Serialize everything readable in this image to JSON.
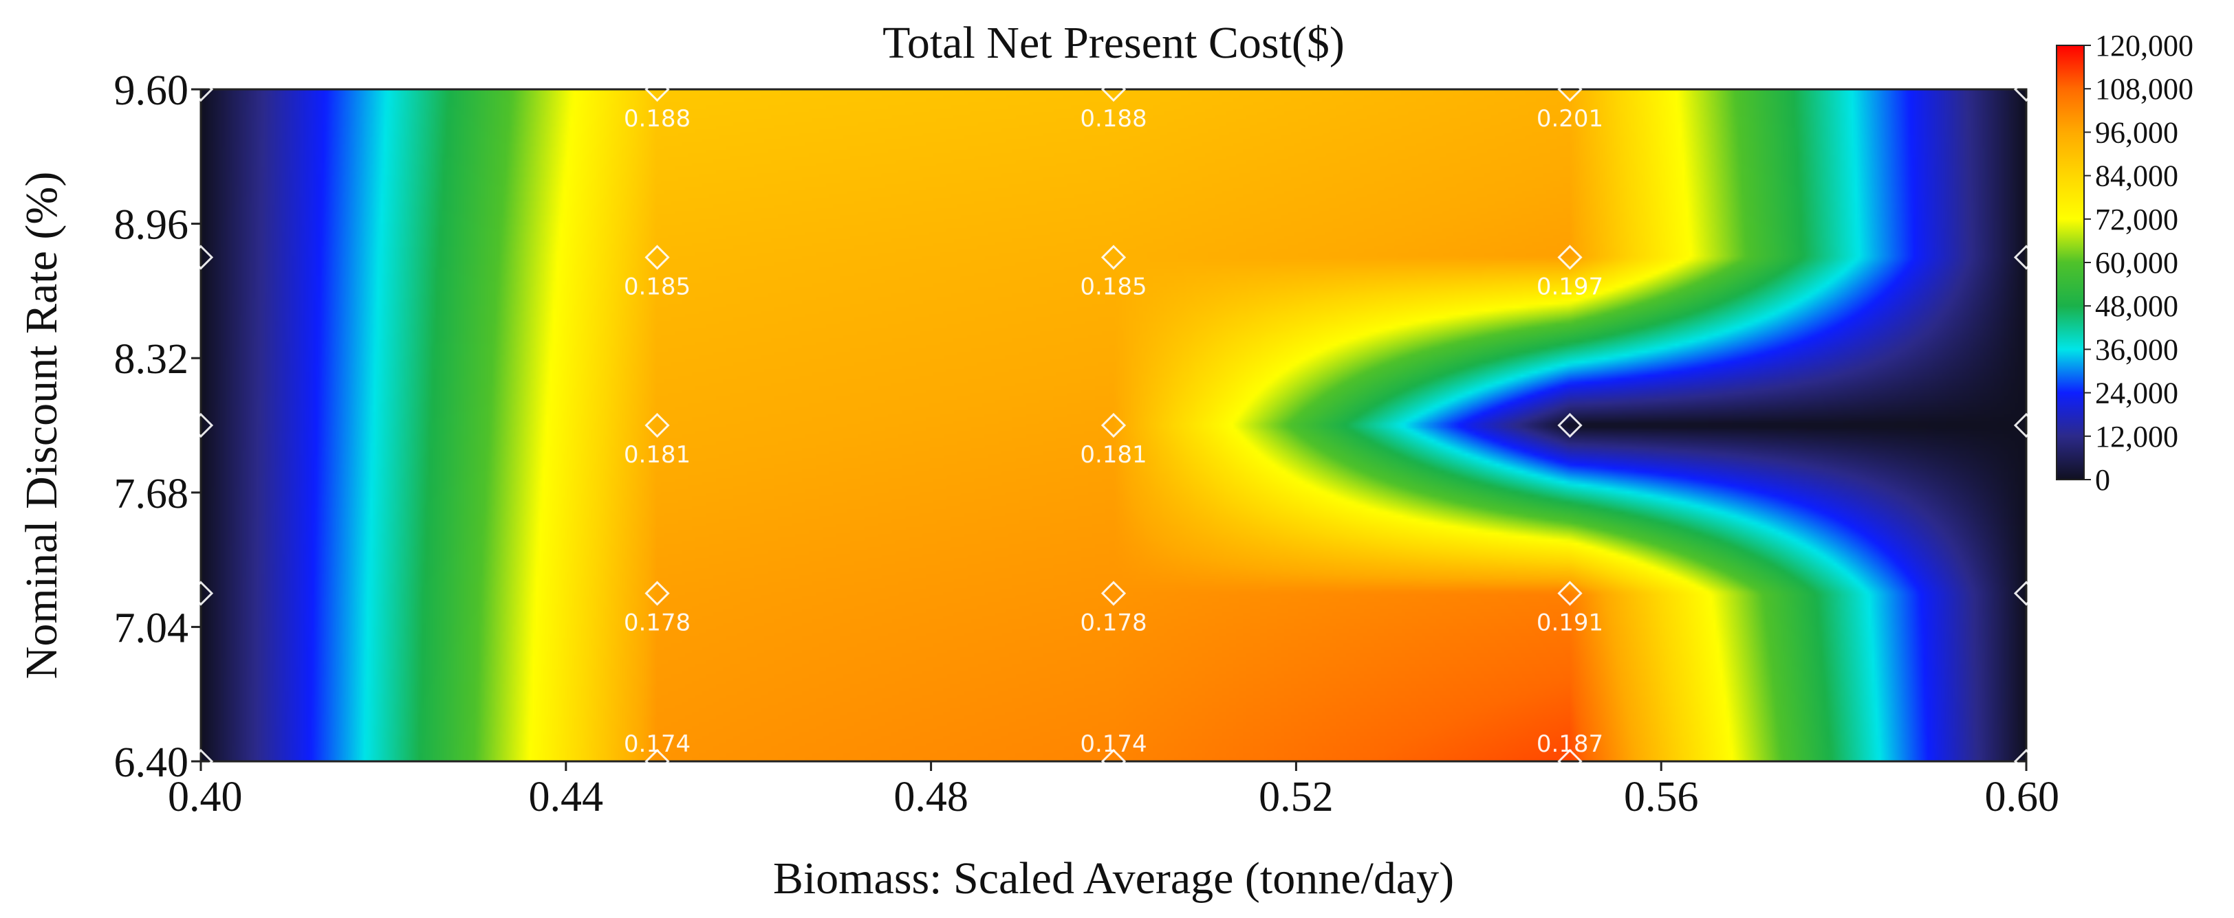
{
  "chart_data": {
    "type": "heatmap",
    "title": "Total Net Present Cost($)",
    "xlabel": "Biomass: Scaled Average (tonne/day)",
    "ylabel": "Nominal Discount Rate (%)",
    "xlim": [
      0.4,
      0.6
    ],
    "ylim": [
      6.4,
      9.6
    ],
    "x_ticks": [
      "0.40",
      "0.44",
      "0.48",
      "0.52",
      "0.56",
      "0.60"
    ],
    "y_ticks": [
      "6.40",
      "7.04",
      "7.68",
      "8.32",
      "8.96",
      "9.60"
    ],
    "colorbar": {
      "min": 0,
      "max": 120000,
      "ticks": [
        "0",
        "12,000",
        "24,000",
        "36,000",
        "48,000",
        "60,000",
        "72,000",
        "84,000",
        "96,000",
        "108,000",
        "120,000"
      ]
    },
    "points": [
      {
        "x": 0.45,
        "y": 9.6,
        "label": "0.188"
      },
      {
        "x": 0.5,
        "y": 9.6,
        "label": "0.188"
      },
      {
        "x": 0.55,
        "y": 9.6,
        "label": "0.201"
      },
      {
        "x": 0.45,
        "y": 8.8,
        "label": "0.185"
      },
      {
        "x": 0.5,
        "y": 8.8,
        "label": "0.185"
      },
      {
        "x": 0.55,
        "y": 8.8,
        "label": "0.197"
      },
      {
        "x": 0.45,
        "y": 8.0,
        "label": "0.181"
      },
      {
        "x": 0.5,
        "y": 8.0,
        "label": "0.181"
      },
      {
        "x": 0.55,
        "y": 8.0,
        "label": ""
      },
      {
        "x": 0.45,
        "y": 7.2,
        "label": "0.178"
      },
      {
        "x": 0.5,
        "y": 7.2,
        "label": "0.178"
      },
      {
        "x": 0.55,
        "y": 7.2,
        "label": "0.191"
      },
      {
        "x": 0.45,
        "y": 6.4,
        "label": "0.174"
      },
      {
        "x": 0.5,
        "y": 6.4,
        "label": "0.174"
      },
      {
        "x": 0.55,
        "y": 6.4,
        "label": "0.187"
      },
      {
        "x": 0.4,
        "y": 9.6,
        "label": ""
      },
      {
        "x": 0.4,
        "y": 8.8,
        "label": ""
      },
      {
        "x": 0.4,
        "y": 8.0,
        "label": ""
      },
      {
        "x": 0.4,
        "y": 7.2,
        "label": ""
      },
      {
        "x": 0.4,
        "y": 6.4,
        "label": ""
      },
      {
        "x": 0.6,
        "y": 9.6,
        "label": ""
      },
      {
        "x": 0.6,
        "y": 8.8,
        "label": ""
      },
      {
        "x": 0.6,
        "y": 8.0,
        "label": ""
      },
      {
        "x": 0.6,
        "y": 7.2,
        "label": ""
      },
      {
        "x": 0.6,
        "y": 6.4,
        "label": ""
      }
    ],
    "surface": {
      "columns_x": [
        0.4,
        0.45,
        0.5,
        0.55,
        0.6
      ],
      "rows_y": [
        9.6,
        8.8,
        8.0,
        7.2,
        6.4
      ],
      "values": [
        [
          0,
          88000,
          90000,
          94000,
          0
        ],
        [
          0,
          92000,
          94000,
          98000,
          0
        ],
        [
          0,
          95000,
          97000,
          0,
          0
        ],
        [
          0,
          98000,
          100000,
          104000,
          0
        ],
        [
          0,
          100000,
          103000,
          112000,
          0
        ]
      ]
    },
    "colors": {
      "stop_0": "#101020",
      "stop_12000": "#2c2a8a",
      "stop_24000": "#0d1fff",
      "stop_36000": "#00e5e8",
      "stop_48000": "#1bb14a",
      "stop_60000": "#4fc22a",
      "stop_72000": "#ffff00",
      "stop_84000": "#ffd700",
      "stop_96000": "#ffaa00",
      "stop_108000": "#ff6a00",
      "stop_120000": "#ff0000"
    }
  }
}
